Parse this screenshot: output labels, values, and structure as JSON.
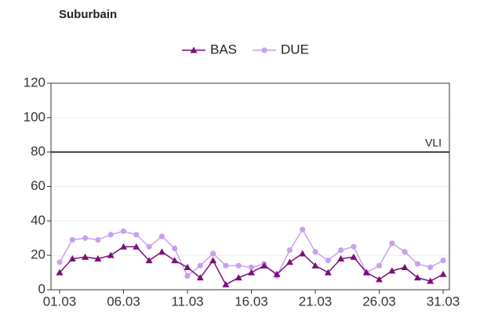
{
  "chart_data": {
    "type": "line",
    "title": "Suburbain",
    "categories": [
      "01.03",
      null,
      null,
      null,
      null,
      "06.03",
      null,
      null,
      null,
      null,
      "11.03",
      null,
      null,
      null,
      null,
      "16.03",
      null,
      null,
      null,
      null,
      "21.03",
      null,
      null,
      null,
      null,
      "26.03",
      null,
      null,
      null,
      null,
      "31.03"
    ],
    "series": [
      {
        "name": "BAS",
        "color": "#7a0f7a",
        "marker": "triangle",
        "values": [
          10,
          18,
          19,
          18,
          20,
          25,
          25,
          17,
          22,
          17,
          13,
          7,
          17,
          3,
          7,
          10,
          14,
          9,
          16,
          21,
          14,
          10,
          18,
          19,
          10,
          6,
          11,
          13,
          7,
          5,
          9
        ]
      },
      {
        "name": "DUE",
        "color": "#c9a0f0",
        "marker": "circle",
        "values": [
          16,
          29,
          30,
          29,
          32,
          34,
          32,
          25,
          31,
          24,
          8,
          14,
          21,
          14,
          14,
          13,
          15,
          8,
          23,
          35,
          22,
          17,
          23,
          25,
          10,
          14,
          27,
          22,
          15,
          13,
          17
        ]
      }
    ],
    "ylim": [
      0,
      120
    ],
    "yticks": [
      0,
      20,
      40,
      60,
      80,
      100,
      120
    ],
    "grid": true,
    "hline": {
      "value": 80,
      "label": "VLI"
    },
    "legend": "top"
  }
}
